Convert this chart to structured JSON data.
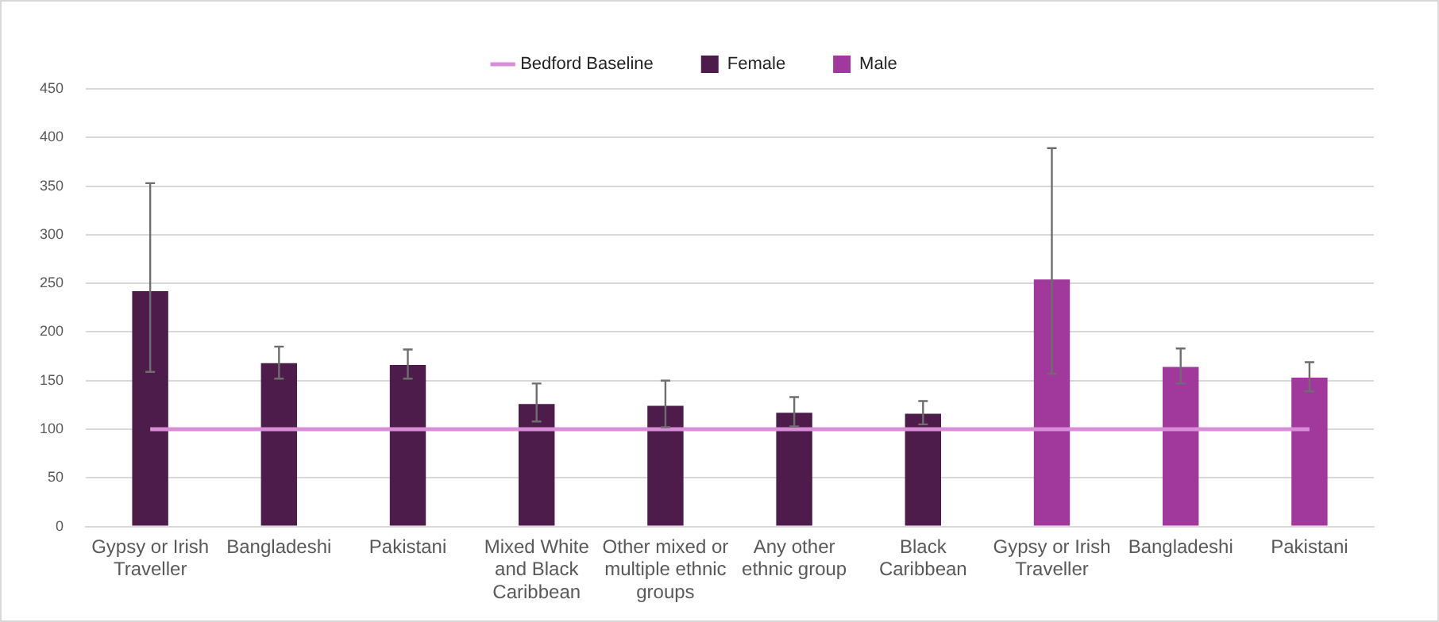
{
  "chart_data": {
    "type": "bar",
    "categories": [
      "Gypsy or Irish Traveller",
      "Bangladeshi",
      "Pakistani",
      "Mixed White and Black Caribbean",
      "Other mixed or multiple ethnic groups",
      "Any other ethnic group",
      "Black Caribbean",
      "Gypsy or Irish Traveller",
      "Bangladeshi",
      "Pakistani"
    ],
    "series": [
      {
        "name": "Bedford Baseline",
        "type": "line",
        "color": "#d98cd8",
        "values": [
          100,
          100,
          100,
          100,
          100,
          100,
          100,
          100,
          100,
          100
        ],
        "marker": "none"
      },
      {
        "name": "Female",
        "color": "#4e1c4b",
        "values": [
          242,
          168,
          166,
          126,
          124,
          117,
          116,
          null,
          null,
          null
        ],
        "errors": [
          [
            159,
            353
          ],
          [
            152,
            185
          ],
          [
            152,
            182
          ],
          [
            108,
            147
          ],
          [
            102,
            150
          ],
          [
            103,
            133
          ],
          [
            105,
            129
          ],
          null,
          null,
          null
        ]
      },
      {
        "name": "Male",
        "color": "#a0399b",
        "values": [
          null,
          null,
          null,
          null,
          null,
          null,
          null,
          254,
          164,
          153
        ],
        "errors": [
          null,
          null,
          null,
          null,
          null,
          null,
          null,
          [
            157,
            389
          ],
          [
            147,
            183
          ],
          [
            139,
            169
          ]
        ]
      }
    ],
    "ylim": [
      0,
      450
    ],
    "yticks": [
      0,
      50,
      100,
      150,
      200,
      250,
      300,
      350,
      400,
      450
    ],
    "grid": "y",
    "legend": "top"
  }
}
